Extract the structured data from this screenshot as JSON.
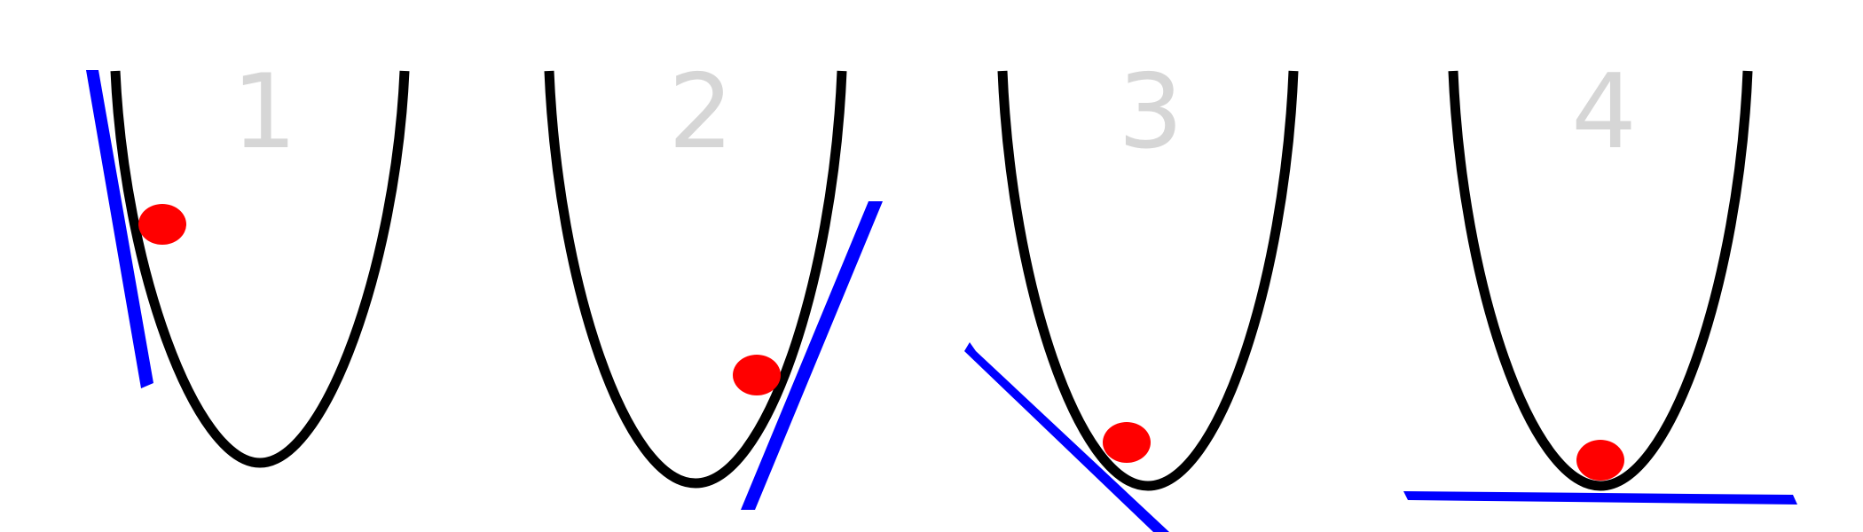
{
  "colors": {
    "background": "#ffffff",
    "curve": "#000000",
    "tangent": "#0000ff",
    "ball": "#ff0000",
    "number": "#d6d6d6"
  },
  "panels": [
    {
      "number": "1"
    },
    {
      "number": "2"
    },
    {
      "number": "3"
    },
    {
      "number": "4"
    }
  ]
}
